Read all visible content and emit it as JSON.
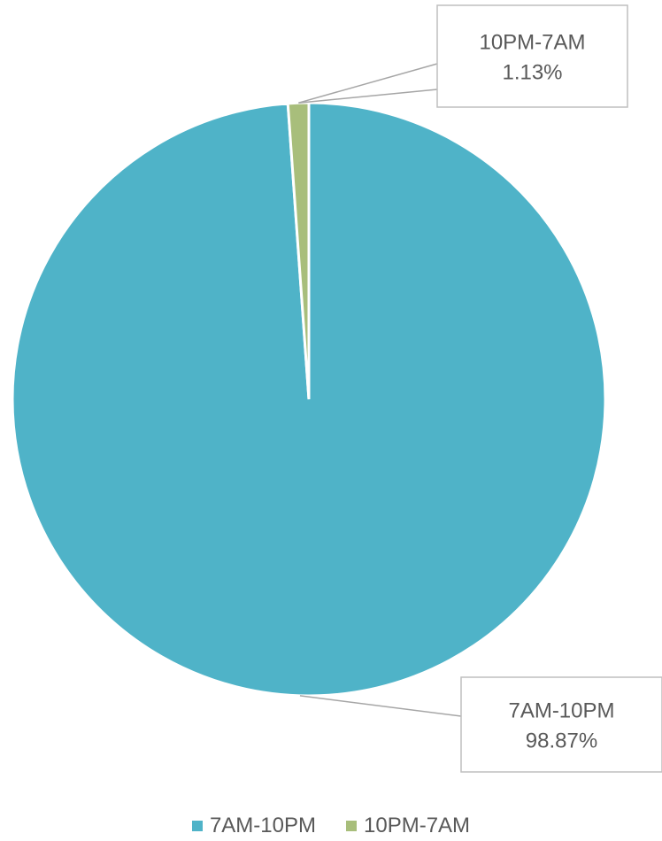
{
  "chart_data": {
    "type": "pie",
    "title": "",
    "series": [
      {
        "values": [
          98.87,
          1.13
        ],
        "categories": [
          "7AM-10PM",
          "10PM-7AM"
        ],
        "colors": [
          "#4FB3C8",
          "#A8BE7B"
        ]
      }
    ],
    "data_labels": [
      {
        "category": "7AM-10PM",
        "percent": "98.87%"
      },
      {
        "category": "10PM-7AM",
        "percent": "1.13%"
      }
    ],
    "legend": {
      "placement": "bottom",
      "entries": [
        "7AM-10PM",
        "10PM-7AM"
      ]
    }
  },
  "style": {
    "label_color": "#595959",
    "callout_border": "#BFBFBF",
    "leader_line": "#A6A6A6",
    "slice_border": "#ffffff"
  }
}
